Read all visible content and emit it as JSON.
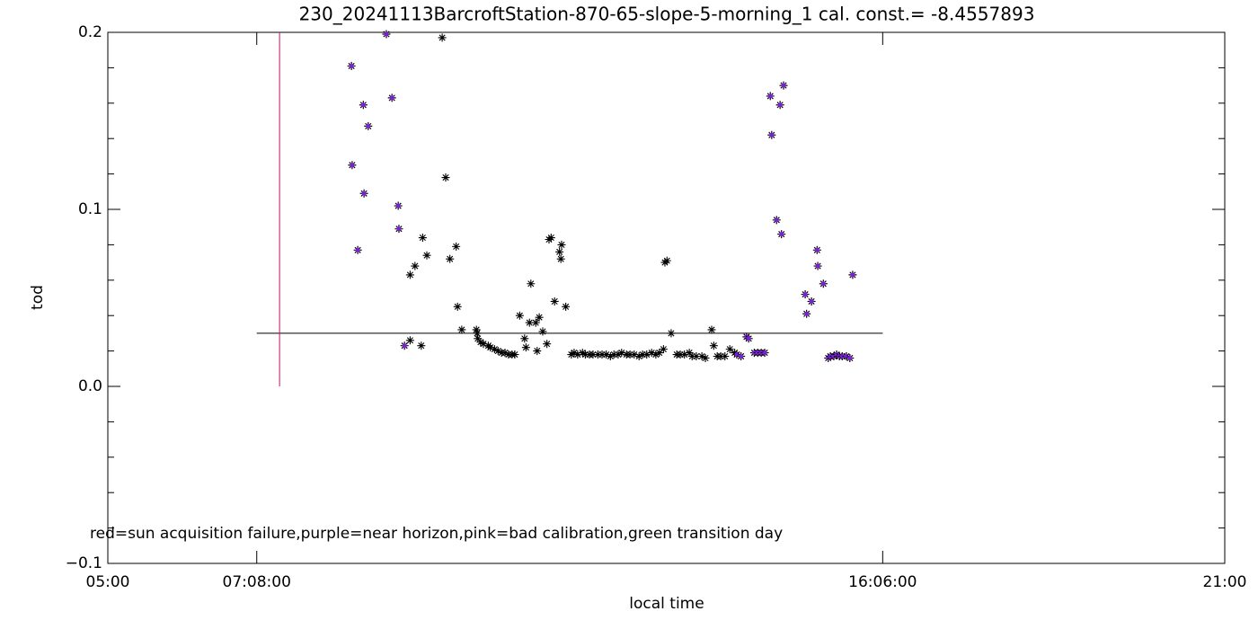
{
  "chart_data": {
    "type": "scatter",
    "title": "230_20241113BarcroftStation-870-65-slope-5-morning_1 cal. const.= -8.4557893",
    "x_label": "local time",
    "y_label": "tod",
    "annotation": "red=sun acquisition failure,purple=near horizon,pink=bad calibration,green transition day",
    "xlim": [
      5,
      21
    ],
    "ylim": [
      -0.1,
      0.2
    ],
    "xticks": [
      {
        "value": 5,
        "label": "05:00"
      },
      {
        "value": 7.1333,
        "label": "07:08:00"
      },
      {
        "value": 16.1,
        "label": "16:06:00"
      },
      {
        "value": 21,
        "label": "21:00"
      }
    ],
    "yticks": [
      {
        "value": -0.1,
        "label": "−0.1"
      },
      {
        "value": 0,
        "label": "0.0"
      },
      0.1,
      0.2
    ],
    "y_minor_step": 0.02,
    "hlines": [
      {
        "y": 0.03,
        "xmin": 7.1333,
        "xmax": 16.1,
        "color": "#000000"
      }
    ],
    "vlines": [
      {
        "x": 7.46,
        "ymin": 0,
        "ymax": 0.2,
        "color": "#c0146e"
      }
    ],
    "series": [
      {
        "color": "#000000",
        "x": [
          9.33,
          9.33,
          9.4,
          9.49,
          9.51,
          9.57,
          9.79,
          9.84,
          9.9,
          9.99,
          10.01,
          10.07,
          10.28,
          10.29,
          10.3,
          10.34,
          10.38,
          10.45,
          10.48,
          10.54,
          10.59,
          10.64,
          10.69,
          10.74,
          10.79,
          10.83,
          10.9,
          10.97,
          10.99,
          11.04,
          11.06,
          11.13,
          11.15,
          11.18,
          11.23,
          11.29,
          11.32,
          11.35,
          11.4,
          11.47,
          11.49,
          11.5,
          11.56,
          11.64,
          11.68,
          11.73,
          11.8,
          11.84,
          11.9,
          11.95,
          12.02,
          12.08,
          12.14,
          12.2,
          12.25,
          12.31,
          12.36,
          12.43,
          12.48,
          12.54,
          12.61,
          12.66,
          12.72,
          12.79,
          12.85,
          12.9,
          12.96,
          12.98,
          13.01,
          13.07,
          13.15,
          13.2,
          13.26,
          13.33,
          13.37,
          13.43,
          13.51,
          13.56,
          13.65,
          13.68,
          13.73,
          13.78,
          13.84,
          13.91,
          13.98
        ],
        "values": [
          0.063,
          0.026,
          0.068,
          0.023,
          0.084,
          0.074,
          0.197,
          0.118,
          0.072,
          0.079,
          0.045,
          0.032,
          0.032,
          0.03,
          0.027,
          0.025,
          0.024,
          0.023,
          0.022,
          0.021,
          0.02,
          0.019,
          0.019,
          0.018,
          0.018,
          0.018,
          0.04,
          0.027,
          0.022,
          0.036,
          0.058,
          0.036,
          0.02,
          0.039,
          0.031,
          0.024,
          0.083,
          0.084,
          0.048,
          0.076,
          0.072,
          0.08,
          0.045,
          0.018,
          0.019,
          0.018,
          0.019,
          0.018,
          0.018,
          0.018,
          0.018,
          0.018,
          0.018,
          0.017,
          0.018,
          0.018,
          0.019,
          0.018,
          0.018,
          0.018,
          0.017,
          0.018,
          0.018,
          0.019,
          0.018,
          0.019,
          0.021,
          0.07,
          0.071,
          0.03,
          0.018,
          0.018,
          0.018,
          0.019,
          0.017,
          0.017,
          0.017,
          0.016,
          0.032,
          0.023,
          0.017,
          0.017,
          0.017,
          0.021,
          0.019
        ]
      },
      {
        "color": "#7a1fd6",
        "x": [
          8.49,
          8.5,
          8.58,
          8.66,
          8.67,
          8.73,
          8.99,
          9.07,
          9.16,
          9.17,
          9.25,
          14.01,
          14.07,
          14.15,
          14.18,
          14.26,
          14.31,
          14.36,
          14.41,
          14.49,
          14.51,
          14.58,
          14.63,
          14.65,
          14.68,
          14.99,
          15.01,
          15.08,
          15.16,
          15.17,
          15.25,
          15.32,
          15.35,
          15.4,
          15.44,
          15.48,
          15.52,
          15.58,
          15.63,
          15.67
        ],
        "values": [
          0.181,
          0.125,
          0.077,
          0.159,
          0.109,
          0.147,
          0.199,
          0.163,
          0.102,
          0.089,
          0.023,
          0.018,
          0.017,
          0.028,
          0.027,
          0.019,
          0.019,
          0.019,
          0.019,
          0.164,
          0.142,
          0.094,
          0.159,
          0.086,
          0.17,
          0.052,
          0.041,
          0.048,
          0.077,
          0.068,
          0.058,
          0.016,
          0.017,
          0.017,
          0.018,
          0.017,
          0.017,
          0.017,
          0.016,
          0.063
        ]
      }
    ]
  }
}
